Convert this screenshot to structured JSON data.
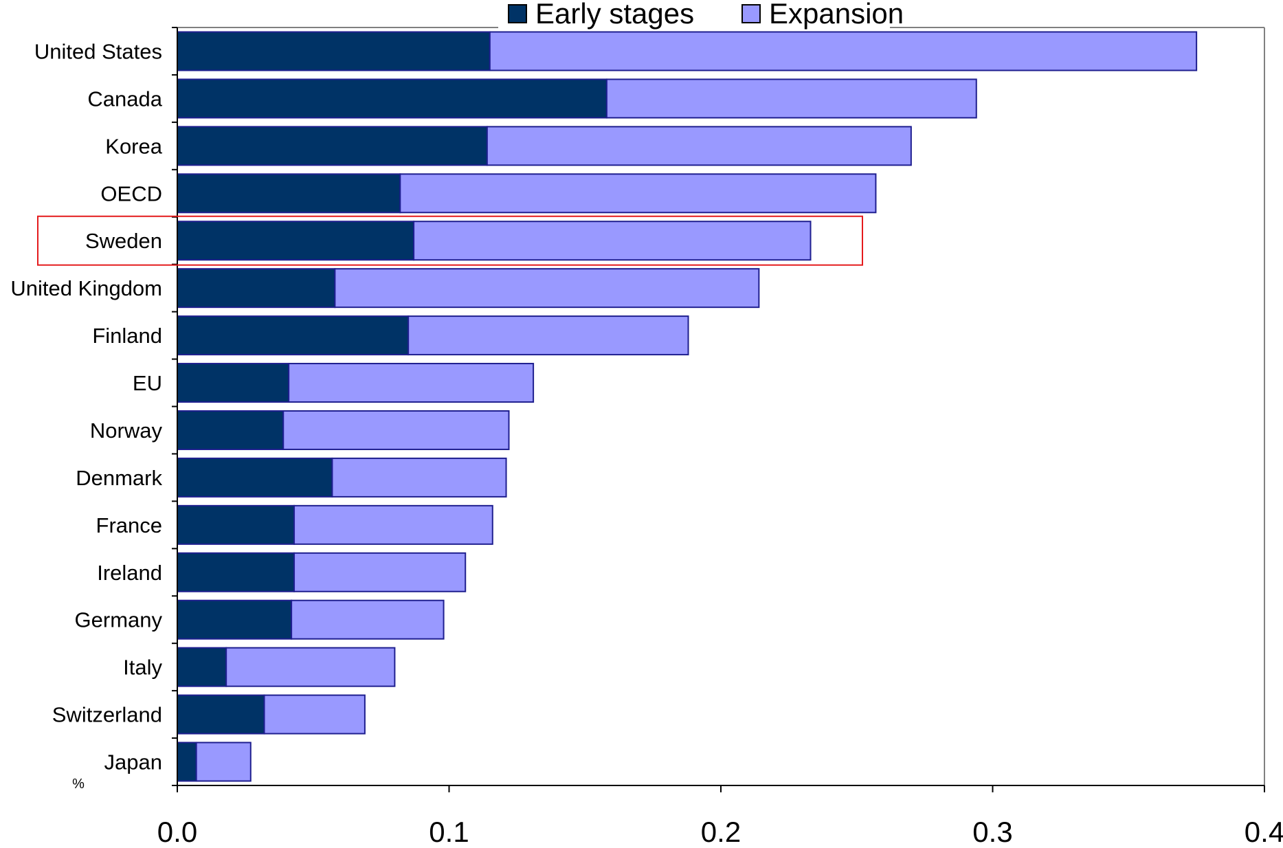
{
  "chart_data": {
    "type": "bar",
    "orientation": "horizontal",
    "stacked": true,
    "categories": [
      "United States",
      "Canada",
      "Korea",
      "OECD",
      "Sweden",
      "United Kingdom",
      "Finland",
      "EU",
      "Norway",
      "Denmark",
      "France",
      "Ireland",
      "Germany",
      "Italy",
      "Switzerland",
      "Japan"
    ],
    "series": [
      {
        "name": "Early stages",
        "color": "#003366",
        "values": [
          0.115,
          0.158,
          0.114,
          0.082,
          0.087,
          0.058,
          0.085,
          0.041,
          0.039,
          0.057,
          0.043,
          0.043,
          0.042,
          0.018,
          0.032,
          0.007
        ]
      },
      {
        "name": "Expansion",
        "color": "#9999FF",
        "values": [
          0.26,
          0.136,
          0.156,
          0.175,
          0.146,
          0.156,
          0.103,
          0.09,
          0.083,
          0.064,
          0.073,
          0.063,
          0.056,
          0.062,
          0.037,
          0.02
        ]
      }
    ],
    "xlim": [
      0,
      0.4
    ],
    "xticks": [
      "0.0",
      "0.1",
      "0.2",
      "0.3",
      "0.4"
    ],
    "unit_label": "%",
    "highlight_category": "Sweden",
    "highlight_color": "#E41A1C",
    "bar_outline_color": "#1F1F8F",
    "legend": {
      "position": "top",
      "entries": [
        "Early stages",
        "Expansion"
      ]
    },
    "grid": false
  }
}
